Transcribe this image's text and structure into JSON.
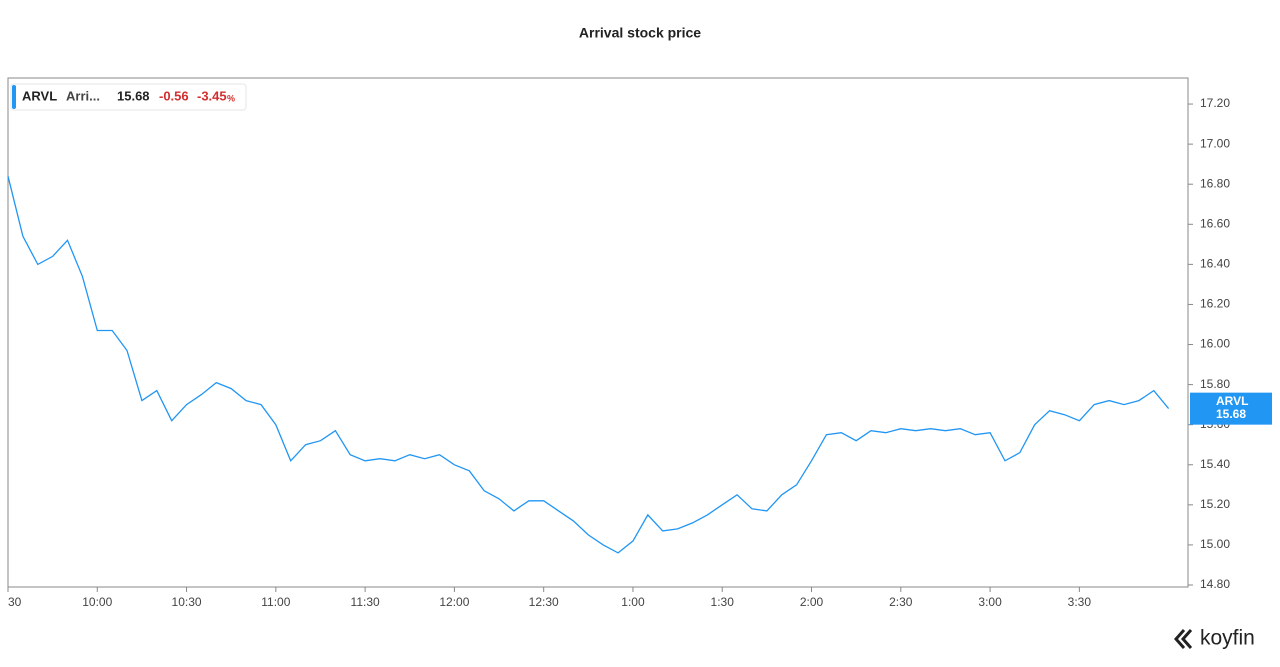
{
  "chart_data": {
    "type": "line",
    "title": "Arrival stock price",
    "categories": [
      "30",
      null,
      null,
      null,
      null,
      null,
      "10:00",
      null,
      null,
      null,
      null,
      null,
      "10:30",
      null,
      null,
      null,
      null,
      null,
      "11:00",
      null,
      null,
      null,
      null,
      null,
      "11:30",
      null,
      null,
      null,
      null,
      null,
      "12:00",
      null,
      null,
      null,
      null,
      null,
      "12:30",
      null,
      null,
      null,
      null,
      null,
      "1:00",
      null,
      null,
      null,
      null,
      null,
      "1:30",
      null,
      null,
      null,
      null,
      null,
      "2:00",
      null,
      null,
      null,
      null,
      null,
      "2:30",
      null,
      null,
      null,
      null,
      null,
      "3:00",
      null,
      null,
      null,
      null,
      null,
      "3:30",
      null,
      null,
      null,
      null,
      null,
      null
    ],
    "series": [
      {
        "name": "ARVL",
        "color": "#2196f3",
        "values": [
          16.84,
          16.54,
          16.4,
          16.44,
          16.52,
          16.34,
          16.07,
          16.07,
          15.97,
          15.72,
          15.77,
          15.62,
          15.7,
          15.75,
          15.81,
          15.78,
          15.72,
          15.7,
          15.6,
          15.42,
          15.5,
          15.52,
          15.57,
          15.45,
          15.42,
          15.43,
          15.42,
          15.45,
          15.43,
          15.45,
          15.4,
          15.37,
          15.27,
          15.23,
          15.17,
          15.22,
          15.22,
          15.17,
          15.12,
          15.05,
          15.0,
          14.96,
          15.02,
          15.15,
          15.07,
          15.08,
          15.11,
          15.15,
          15.2,
          15.25,
          15.18,
          15.17,
          15.25,
          15.3,
          15.42,
          15.55,
          15.56,
          15.52,
          15.57,
          15.56,
          15.58,
          15.57,
          15.58,
          15.57,
          15.58,
          15.55,
          15.56,
          15.42,
          15.46,
          15.6,
          15.67,
          15.65,
          15.62,
          15.7,
          15.72,
          15.7,
          15.72,
          15.77,
          15.68
        ]
      }
    ],
    "ylim": [
      14.79,
      17.33
    ],
    "yticks": [
      {
        "value": 14.8,
        "label": "14.80"
      },
      {
        "value": 15,
        "label": "15.00"
      },
      {
        "value": 15.2,
        "label": "15.20"
      },
      {
        "value": 15.4,
        "label": "15.40"
      },
      {
        "value": 15.6,
        "label": "15.60"
      },
      {
        "value": 15.8,
        "label": "15.80"
      },
      {
        "value": 16,
        "label": "16.00"
      },
      {
        "value": 16.2,
        "label": "16.20"
      },
      {
        "value": 16.4,
        "label": "16.40"
      },
      {
        "value": 16.6,
        "label": "16.60"
      },
      {
        "value": 16.8,
        "label": "16.80"
      },
      {
        "value": 17,
        "label": "17.00"
      },
      {
        "value": 17.2,
        "label": "17.20"
      }
    ],
    "legend": {
      "name": "Arri...",
      "last": "15.68",
      "change": "-0.56",
      "change_pct": "-3.45",
      "pct_unit": "%"
    },
    "tag_value": 15.68,
    "brand": "koyfin"
  }
}
